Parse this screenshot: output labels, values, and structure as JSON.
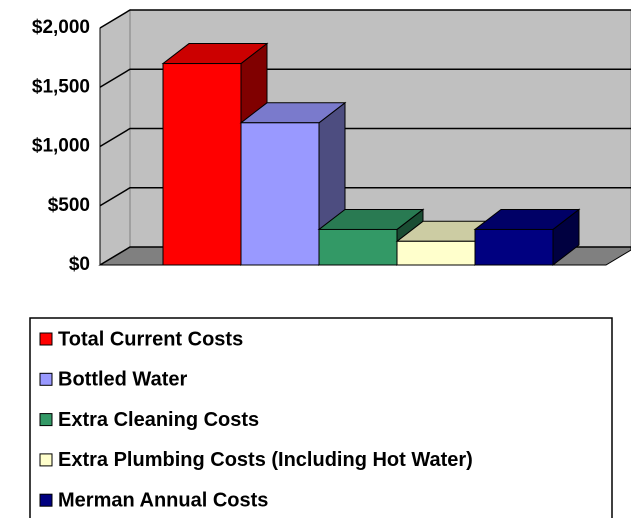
{
  "chart_data": {
    "type": "bar3d",
    "series": [
      {
        "name": "Total Current Costs",
        "color": "#ff0000",
        "values": [
          1700
        ]
      },
      {
        "name": "Bottled Water",
        "color": "#9999ff",
        "values": [
          1200
        ]
      },
      {
        "name": "Extra Cleaning Costs",
        "color": "#339966",
        "values": [
          300
        ]
      },
      {
        "name": "Extra Plumbing Costs (Including Hot Water)",
        "color": "#ffffcc",
        "values": [
          200
        ]
      },
      {
        "name": "Merman Annual Costs",
        "color": "#000080",
        "values": [
          300
        ]
      }
    ],
    "ylim": [
      0,
      2000
    ],
    "yticks": [
      {
        "value": 0,
        "label": "$0"
      },
      {
        "value": 500,
        "label": "$500"
      },
      {
        "value": 1000,
        "label": "$1,000"
      },
      {
        "value": 1500,
        "label": "$1,500"
      },
      {
        "value": 2000,
        "label": "$2,000"
      }
    ],
    "grid": true,
    "legend": "bottom"
  }
}
